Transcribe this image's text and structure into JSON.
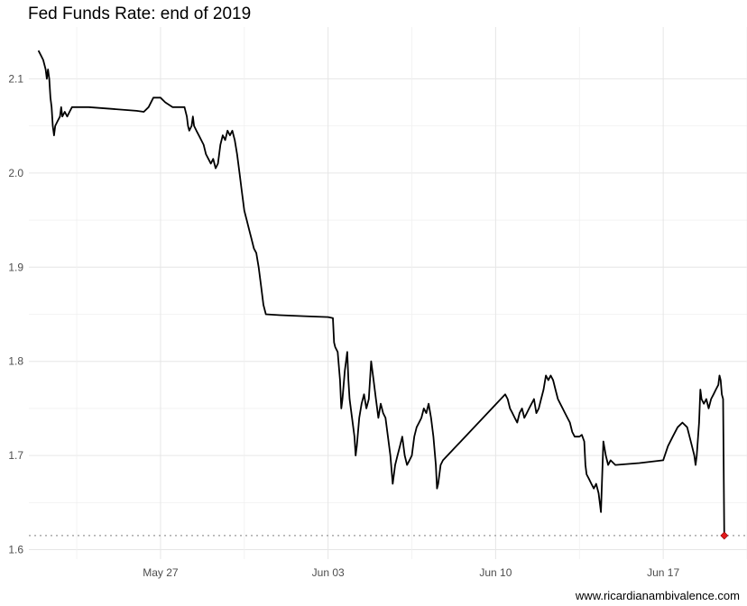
{
  "chart_data": {
    "type": "line",
    "title": "Fed Funds Rate: end of 2019",
    "caption": "www.ricardianambivalence.com",
    "xlabel": "",
    "ylabel": "",
    "x_axis": {
      "unit": "days since May 20, 2019",
      "ticks": [
        {
          "label": "May 27",
          "value": 7
        },
        {
          "label": "Jun 03",
          "value": 14
        },
        {
          "label": "Jun 10",
          "value": 21
        },
        {
          "label": "Jun 17",
          "value": 28
        }
      ],
      "xlim": [
        1.5,
        31.5
      ]
    },
    "y_axis": {
      "ticks": [
        {
          "label": "1.6",
          "value": 1.6
        },
        {
          "label": "1.7",
          "value": 1.7
        },
        {
          "label": "1.8",
          "value": 1.8
        },
        {
          "label": "1.9",
          "value": 1.9
        },
        {
          "label": "2.0",
          "value": 2.0
        },
        {
          "label": "2.1",
          "value": 2.1
        }
      ],
      "ylim": [
        1.59,
        2.155
      ]
    },
    "grid": true,
    "reference_line": {
      "value": 1.615,
      "style": "dotted",
      "color": "#999999"
    },
    "series": [
      {
        "color": "#000000",
        "end_marker_color": "#e31a1c",
        "points": [
          [
            1.9,
            2.13
          ],
          [
            2.0,
            2.125
          ],
          [
            2.1,
            2.12
          ],
          [
            2.2,
            2.11
          ],
          [
            2.25,
            2.1
          ],
          [
            2.3,
            2.11
          ],
          [
            2.35,
            2.1
          ],
          [
            2.4,
            2.08
          ],
          [
            2.45,
            2.07
          ],
          [
            2.5,
            2.05
          ],
          [
            2.55,
            2.04
          ],
          [
            2.6,
            2.05
          ],
          [
            2.7,
            2.055
          ],
          [
            2.8,
            2.06
          ],
          [
            2.85,
            2.07
          ],
          [
            2.9,
            2.06
          ],
          [
            3.0,
            2.065
          ],
          [
            3.1,
            2.06
          ],
          [
            3.2,
            2.065
          ],
          [
            3.3,
            2.07
          ],
          [
            3.4,
            2.07
          ],
          [
            4.0,
            2.07
          ],
          [
            5.0,
            2.068
          ],
          [
            6.0,
            2.066
          ],
          [
            6.3,
            2.065
          ],
          [
            6.5,
            2.07
          ],
          [
            6.7,
            2.08
          ],
          [
            7.0,
            2.08
          ],
          [
            7.2,
            2.075
          ],
          [
            7.5,
            2.07
          ],
          [
            7.8,
            2.07
          ],
          [
            8.0,
            2.07
          ],
          [
            8.1,
            2.06
          ],
          [
            8.15,
            2.05
          ],
          [
            8.2,
            2.045
          ],
          [
            8.3,
            2.05
          ],
          [
            8.35,
            2.06
          ],
          [
            8.4,
            2.05
          ],
          [
            8.5,
            2.045
          ],
          [
            8.6,
            2.04
          ],
          [
            8.8,
            2.03
          ],
          [
            8.9,
            2.02
          ],
          [
            9.0,
            2.015
          ],
          [
            9.1,
            2.01
          ],
          [
            9.2,
            2.015
          ],
          [
            9.3,
            2.005
          ],
          [
            9.4,
            2.01
          ],
          [
            9.5,
            2.03
          ],
          [
            9.6,
            2.04
          ],
          [
            9.7,
            2.035
          ],
          [
            9.8,
            2.045
          ],
          [
            9.9,
            2.04
          ],
          [
            10.0,
            2.045
          ],
          [
            10.1,
            2.035
          ],
          [
            10.2,
            2.02
          ],
          [
            10.3,
            2.0
          ],
          [
            10.4,
            1.98
          ],
          [
            10.5,
            1.96
          ],
          [
            10.6,
            1.95
          ],
          [
            10.7,
            1.94
          ],
          [
            10.8,
            1.93
          ],
          [
            10.9,
            1.92
          ],
          [
            11.0,
            1.915
          ],
          [
            11.1,
            1.9
          ],
          [
            11.2,
            1.88
          ],
          [
            11.3,
            1.86
          ],
          [
            11.4,
            1.85
          ],
          [
            12.0,
            1.849
          ],
          [
            13.0,
            1.848
          ],
          [
            14.0,
            1.847
          ],
          [
            14.2,
            1.846
          ],
          [
            14.25,
            1.82
          ],
          [
            14.3,
            1.815
          ],
          [
            14.4,
            1.81
          ],
          [
            14.5,
            1.78
          ],
          [
            14.55,
            1.75
          ],
          [
            14.6,
            1.76
          ],
          [
            14.7,
            1.79
          ],
          [
            14.8,
            1.81
          ],
          [
            14.85,
            1.78
          ],
          [
            14.9,
            1.76
          ],
          [
            15.0,
            1.74
          ],
          [
            15.1,
            1.72
          ],
          [
            15.15,
            1.7
          ],
          [
            15.2,
            1.71
          ],
          [
            15.3,
            1.74
          ],
          [
            15.4,
            1.755
          ],
          [
            15.5,
            1.765
          ],
          [
            15.6,
            1.75
          ],
          [
            15.7,
            1.76
          ],
          [
            15.8,
            1.8
          ],
          [
            15.9,
            1.78
          ],
          [
            16.0,
            1.76
          ],
          [
            16.1,
            1.74
          ],
          [
            16.2,
            1.755
          ],
          [
            16.3,
            1.745
          ],
          [
            16.4,
            1.74
          ],
          [
            16.5,
            1.72
          ],
          [
            16.6,
            1.7
          ],
          [
            16.7,
            1.67
          ],
          [
            16.8,
            1.69
          ],
          [
            16.9,
            1.7
          ],
          [
            17.0,
            1.71
          ],
          [
            17.1,
            1.72
          ],
          [
            17.2,
            1.7
          ],
          [
            17.3,
            1.69
          ],
          [
            17.4,
            1.695
          ],
          [
            17.5,
            1.7
          ],
          [
            17.6,
            1.72
          ],
          [
            17.7,
            1.73
          ],
          [
            17.8,
            1.735
          ],
          [
            17.9,
            1.74
          ],
          [
            18.0,
            1.75
          ],
          [
            18.1,
            1.745
          ],
          [
            18.2,
            1.755
          ],
          [
            18.3,
            1.74
          ],
          [
            18.4,
            1.72
          ],
          [
            18.5,
            1.69
          ],
          [
            18.55,
            1.665
          ],
          [
            18.6,
            1.67
          ],
          [
            18.7,
            1.69
          ],
          [
            18.8,
            1.695
          ],
          [
            21.4,
            1.765
          ],
          [
            21.5,
            1.76
          ],
          [
            21.6,
            1.75
          ],
          [
            21.7,
            1.745
          ],
          [
            21.8,
            1.74
          ],
          [
            21.9,
            1.735
          ],
          [
            22.0,
            1.745
          ],
          [
            22.1,
            1.75
          ],
          [
            22.2,
            1.74
          ],
          [
            22.3,
            1.745
          ],
          [
            22.4,
            1.75
          ],
          [
            22.5,
            1.755
          ],
          [
            22.6,
            1.76
          ],
          [
            22.7,
            1.745
          ],
          [
            22.8,
            1.75
          ],
          [
            22.9,
            1.76
          ],
          [
            23.0,
            1.77
          ],
          [
            23.1,
            1.785
          ],
          [
            23.2,
            1.78
          ],
          [
            23.3,
            1.785
          ],
          [
            23.4,
            1.78
          ],
          [
            23.5,
            1.77
          ],
          [
            23.6,
            1.76
          ],
          [
            23.7,
            1.755
          ],
          [
            23.8,
            1.75
          ],
          [
            23.9,
            1.745
          ],
          [
            24.0,
            1.74
          ],
          [
            24.1,
            1.735
          ],
          [
            24.2,
            1.725
          ],
          [
            24.3,
            1.72
          ],
          [
            24.5,
            1.72
          ],
          [
            24.6,
            1.722
          ],
          [
            24.7,
            1.715
          ],
          [
            24.75,
            1.69
          ],
          [
            24.8,
            1.68
          ],
          [
            24.9,
            1.675
          ],
          [
            25.0,
            1.67
          ],
          [
            25.1,
            1.665
          ],
          [
            25.2,
            1.67
          ],
          [
            25.3,
            1.66
          ],
          [
            25.35,
            1.65
          ],
          [
            25.4,
            1.64
          ],
          [
            25.5,
            1.715
          ],
          [
            25.6,
            1.7
          ],
          [
            25.7,
            1.69
          ],
          [
            25.8,
            1.695
          ],
          [
            26.0,
            1.69
          ],
          [
            27.0,
            1.692
          ],
          [
            28.0,
            1.695
          ],
          [
            28.2,
            1.71
          ],
          [
            28.4,
            1.72
          ],
          [
            28.6,
            1.73
          ],
          [
            28.8,
            1.735
          ],
          [
            29.0,
            1.73
          ],
          [
            29.2,
            1.71
          ],
          [
            29.3,
            1.7
          ],
          [
            29.35,
            1.69
          ],
          [
            29.4,
            1.7
          ],
          [
            29.5,
            1.735
          ],
          [
            29.55,
            1.77
          ],
          [
            29.6,
            1.76
          ],
          [
            29.7,
            1.755
          ],
          [
            29.8,
            1.76
          ],
          [
            29.9,
            1.75
          ],
          [
            30.0,
            1.76
          ],
          [
            30.1,
            1.765
          ],
          [
            30.2,
            1.77
          ],
          [
            30.3,
            1.775
          ],
          [
            30.35,
            1.785
          ],
          [
            30.4,
            1.78
          ],
          [
            30.45,
            1.765
          ],
          [
            30.5,
            1.76
          ],
          [
            30.55,
            1.615
          ]
        ]
      }
    ]
  }
}
